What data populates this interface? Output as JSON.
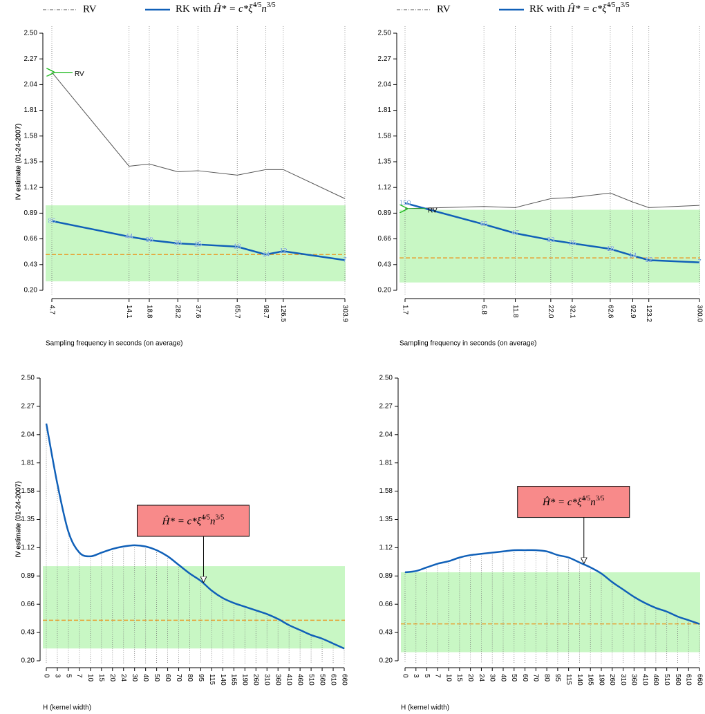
{
  "chart_data": [
    {
      "type": "line",
      "xscale": "log",
      "grid": true,
      "ylabel": "IV estimate (01-24-2007)",
      "xlabel": "Sampling frequency in seconds (on average)",
      "x": [
        4.7,
        14.1,
        18.8,
        28.2,
        37.6,
        65.7,
        98.7,
        126.5,
        303.9
      ],
      "xlim": [
        4.7,
        303.9
      ],
      "xticks": [
        4.7,
        14.1,
        18.8,
        28.2,
        37.6,
        65.7,
        98.7,
        126.5,
        303.9
      ],
      "ylim": [
        0.2,
        2.5
      ],
      "yticks": [
        {
          "value": 0.2,
          "label": "0.20"
        },
        0.43,
        0.66,
        0.89,
        1.12,
        1.35,
        1.58,
        1.81,
        2.04,
        2.27,
        {
          "value": 2.5,
          "label": "2.50"
        }
      ],
      "formula": [
        "Ĥ* = c*ξ̂",
        "4/5",
        "n",
        "3/5"
      ],
      "series": [
        {
          "name": "RV",
          "color": "#555555",
          "values": [
            2.15,
            1.31,
            1.33,
            1.26,
            1.27,
            1.23,
            1.28,
            1.28,
            1.02
          ]
        },
        {
          "name": "RK with",
          "color": "#1060b8",
          "values": [
            0.82,
            0.68,
            0.65,
            0.62,
            0.61,
            0.59,
            0.52,
            0.55,
            0.47
          ],
          "point_labels": [
            86,
            44,
            38,
            30,
            25,
            18,
            14,
            12,
            7
          ]
        }
      ],
      "rv_marker": {
        "label": "RV",
        "color": "#22bb22"
      },
      "band": {
        "from": 0.28,
        "to": 0.96,
        "color": "#c8f7c4"
      },
      "hline": {
        "value": 0.52,
        "color": "#e8a030"
      }
    },
    {
      "type": "line",
      "xscale": "log",
      "grid": true,
      "ylabel": "IV estimate (01-24-2007)",
      "xlabel": "Sampling frequency in seconds (on average)",
      "x": [
        1.7,
        6.8,
        11.8,
        22.0,
        32.1,
        62.6,
        92.9,
        123.2,
        300.0
      ],
      "xlim": [
        1.7,
        300.0
      ],
      "xticks": [
        1.7,
        6.8,
        11.8,
        {
          "value": 22.0,
          "label": "22.0"
        },
        32.1,
        62.6,
        92.9,
        123.2,
        {
          "value": 300.0,
          "label": "300.0"
        }
      ],
      "ylim": [
        0.2,
        2.5
      ],
      "yticks": [
        {
          "value": 0.2,
          "label": "0.20"
        },
        0.43,
        0.66,
        0.89,
        1.12,
        1.35,
        1.58,
        1.81,
        2.04,
        2.27,
        {
          "value": 2.5,
          "label": "2.50"
        }
      ],
      "formula": [
        "Ĥ* = c*ξ̂",
        "4/5",
        "n",
        "3/5"
      ],
      "series": [
        {
          "name": "RV",
          "color": "#555555",
          "values": [
            0.93,
            0.95,
            0.94,
            1.02,
            1.03,
            1.07,
            0.99,
            0.94,
            0.96
          ]
        },
        {
          "name": "RK with",
          "color": "#1060b8",
          "values": [
            0.98,
            0.79,
            0.71,
            0.65,
            0.62,
            0.57,
            0.51,
            0.47,
            0.45
          ],
          "point_labels": [
            150,
            66,
            47,
            33,
            26,
            18,
            14,
            12,
            7
          ]
        }
      ],
      "rv_marker": {
        "label": "RV",
        "color": "#22bb22"
      },
      "band": {
        "from": 0.27,
        "to": 0.92,
        "color": "#c8f7c4"
      },
      "hline": {
        "value": 0.49,
        "color": "#e8a030"
      }
    },
    {
      "type": "curve",
      "grid": true,
      "ylabel": "IV estimate (01-24-2007)",
      "xlabel": "H (kernel width)",
      "categories": [
        "0",
        "3",
        "5",
        "7",
        "10",
        "15",
        "20",
        "24",
        "30",
        "40",
        "50",
        "60",
        "70",
        "80",
        "95",
        "115",
        "140",
        "165",
        "190",
        "260",
        "310",
        "360",
        "410",
        "460",
        "510",
        "560",
        "610",
        "660"
      ],
      "ylim": [
        0.2,
        2.5
      ],
      "yticks": [
        {
          "value": 0.2,
          "label": "0.20"
        },
        0.43,
        0.66,
        0.89,
        1.12,
        1.35,
        1.58,
        1.81,
        2.04,
        2.27,
        {
          "value": 2.5,
          "label": "2.50"
        }
      ],
      "series": [
        {
          "color": "#1060b8",
          "values": [
            2.13,
            1.64,
            1.25,
            1.08,
            1.05,
            1.08,
            1.11,
            1.13,
            1.14,
            1.13,
            1.1,
            1.05,
            0.98,
            0.91,
            0.85,
            0.77,
            0.71,
            0.67,
            0.64,
            0.61,
            0.58,
            0.54,
            0.49,
            0.45,
            0.41,
            0.38,
            0.34,
            0.3
          ]
        }
      ],
      "annotation": {
        "x": 100,
        "text": [
          "Ĥ* = c*ξ̂",
          "4/5",
          "n",
          "3/5"
        ],
        "color": "#f88a8a"
      },
      "band": {
        "from": 0.3,
        "to": 0.97,
        "color": "#c8f7c4"
      },
      "hline": {
        "value": 0.53,
        "color": "#e8a030"
      }
    },
    {
      "type": "curve",
      "grid": true,
      "ylabel": "IV estimate (01-24-2007)",
      "xlabel": "H (kernel width)",
      "categories": [
        "0",
        "3",
        "5",
        "7",
        "10",
        "15",
        "20",
        "24",
        "30",
        "40",
        "50",
        "60",
        "70",
        "80",
        "95",
        "115",
        "140",
        "165",
        "190",
        "260",
        "310",
        "360",
        "410",
        "460",
        "510",
        "560",
        "610",
        "660"
      ],
      "ylim": [
        0.2,
        2.5
      ],
      "yticks": [
        {
          "value": 0.2,
          "label": "0.20"
        },
        0.43,
        0.66,
        0.89,
        1.12,
        1.35,
        1.58,
        1.81,
        2.04,
        2.27,
        {
          "value": 2.5,
          "label": "2.50"
        }
      ],
      "series": [
        {
          "color": "#1060b8",
          "values": [
            0.92,
            0.93,
            0.96,
            0.99,
            1.01,
            1.04,
            1.06,
            1.07,
            1.08,
            1.09,
            1.1,
            1.1,
            1.1,
            1.09,
            1.06,
            1.04,
            1.0,
            0.96,
            0.91,
            0.84,
            0.78,
            0.72,
            0.67,
            0.63,
            0.6,
            0.56,
            0.53,
            0.5
          ]
        }
      ],
      "annotation": {
        "x": 150,
        "text": [
          "Ĥ* = c*ξ̂",
          "4/5",
          "n",
          "3/5"
        ],
        "color": "#f88a8a"
      },
      "band": {
        "from": 0.27,
        "to": 0.92,
        "color": "#c8f7c4"
      },
      "hline": {
        "value": 0.5,
        "color": "#e8a030"
      }
    }
  ]
}
